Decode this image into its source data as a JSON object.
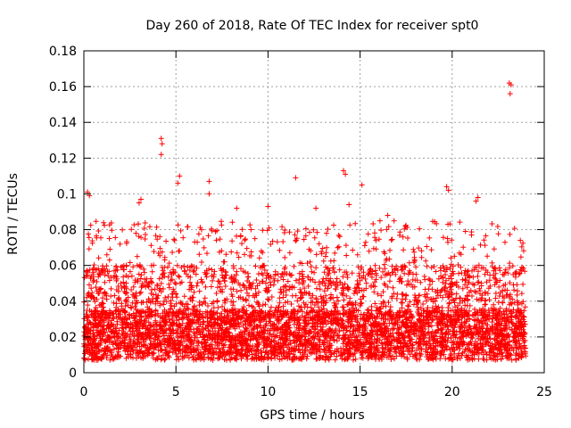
{
  "chart_data": {
    "type": "scatter",
    "title": "Day 260 of 2018, Rate Of TEC Index for receiver spt0",
    "xlabel": "GPS time / hours",
    "ylabel": "ROTI / TECUs",
    "xlim": [
      0,
      25
    ],
    "ylim": [
      0,
      0.18
    ],
    "x_ticks": [
      "0",
      "5",
      "10",
      "15",
      "20",
      "25"
    ],
    "y_ticks": [
      "0",
      "0.02",
      "0.04",
      "0.06",
      "0.08",
      "0.1",
      "0.12",
      "0.14",
      "0.16",
      "0.18"
    ],
    "grid": true,
    "marker": "+",
    "color": "#ff0000",
    "data_x_range": [
      0,
      24
    ],
    "outliers": [
      {
        "x": 4.2,
        "y": 0.131
      },
      {
        "x": 4.25,
        "y": 0.128
      },
      {
        "x": 4.2,
        "y": 0.122
      },
      {
        "x": 23.1,
        "y": 0.162
      },
      {
        "x": 23.2,
        "y": 0.161
      },
      {
        "x": 23.15,
        "y": 0.156
      },
      {
        "x": 14.1,
        "y": 0.113
      },
      {
        "x": 14.2,
        "y": 0.111
      },
      {
        "x": 11.5,
        "y": 0.109
      },
      {
        "x": 5.2,
        "y": 0.11
      },
      {
        "x": 5.1,
        "y": 0.106
      },
      {
        "x": 6.8,
        "y": 0.107
      },
      {
        "x": 6.8,
        "y": 0.1
      },
      {
        "x": 15.1,
        "y": 0.105
      },
      {
        "x": 19.7,
        "y": 0.104
      },
      {
        "x": 19.8,
        "y": 0.102
      },
      {
        "x": 0.2,
        "y": 0.101
      },
      {
        "x": 0.3,
        "y": 0.099
      },
      {
        "x": 3.1,
        "y": 0.097
      },
      {
        "x": 3.0,
        "y": 0.095
      },
      {
        "x": 21.4,
        "y": 0.098
      },
      {
        "x": 21.3,
        "y": 0.096
      },
      {
        "x": 10.0,
        "y": 0.093
      },
      {
        "x": 12.6,
        "y": 0.092
      },
      {
        "x": 14.4,
        "y": 0.094
      },
      {
        "x": 16.5,
        "y": 0.088
      },
      {
        "x": 8.3,
        "y": 0.092
      }
    ]
  }
}
